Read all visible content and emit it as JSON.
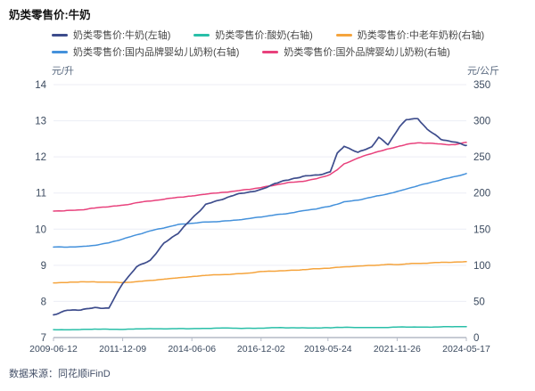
{
  "title": "奶类零售价:牛奶",
  "footer": {
    "source_label": "数据来源：同花顺iFinD"
  },
  "colors": {
    "background": "#ffffff",
    "grid": "#eceef5",
    "axis_line": "#b4bac6",
    "tick_text": "#3b4a5f",
    "unit_text": "#5a6a80",
    "legend_text": "#474747",
    "title_text": "#141414",
    "footer_text": "#445068"
  },
  "chart_data": {
    "type": "line",
    "title": "奶类零售价:牛奶",
    "grid": true,
    "legend_position": "top",
    "left_axis": {
      "unit": "元/升",
      "min": 7,
      "max": 14,
      "ticks": [
        14,
        13,
        12,
        11,
        10,
        9,
        8,
        7
      ]
    },
    "right_axis": {
      "unit": "元/公斤",
      "min": 0,
      "max": 350,
      "ticks": [
        350,
        300,
        250,
        200,
        150,
        100,
        50,
        0
      ]
    },
    "x_axis": {
      "start_date": "2009-06-12",
      "end_date": "2024-05-17",
      "tick_labels": [
        {
          "label": "2009-06-12",
          "m": 0
        },
        {
          "label": "2011-12-09",
          "m": 30
        },
        {
          "label": "2014-06-06",
          "m": 60
        },
        {
          "label": "2016-12-02",
          "m": 90
        },
        {
          "label": "2019-05-24",
          "m": 119
        },
        {
          "label": "2021-11-26",
          "m": 149
        },
        {
          "label": "2024-05-17",
          "m": 179
        }
      ]
    },
    "x": [
      "2009-06",
      "2009-12",
      "2010-06",
      "2010-12",
      "2011-06",
      "2011-12",
      "2012-06",
      "2012-12",
      "2013-06",
      "2013-12",
      "2014-06",
      "2014-12",
      "2015-06",
      "2015-12",
      "2016-06",
      "2016-12",
      "2017-06",
      "2017-12",
      "2018-06",
      "2018-12",
      "2019-06",
      "2019-09",
      "2019-12",
      "2020-06",
      "2020-12",
      "2021-03",
      "2021-07",
      "2021-12",
      "2022-03",
      "2022-08",
      "2022-12",
      "2023-06",
      "2023-12",
      "2024-05"
    ],
    "series": [
      {
        "name": "奶类零售价:牛奶(左轴)",
        "axis": "left",
        "color": "#3d4c8c",
        "values": [
          7.62,
          7.76,
          7.79,
          7.82,
          7.8,
          8.5,
          8.97,
          9.15,
          9.6,
          9.88,
          10.3,
          10.7,
          10.8,
          10.92,
          11.02,
          11.1,
          11.28,
          11.35,
          11.45,
          11.5,
          11.6,
          12.1,
          12.3,
          12.1,
          12.28,
          12.55,
          12.35,
          12.85,
          13.02,
          13.05,
          12.75,
          12.5,
          12.42,
          12.32
        ]
      },
      {
        "name": "奶类零售价:酸奶(右轴)",
        "axis": "right",
        "color": "#29bfa8",
        "values": [
          11,
          11,
          11,
          11.5,
          11.5,
          11.5,
          12,
          12,
          12,
          12.5,
          12.5,
          12.5,
          13,
          13,
          13,
          13,
          13.5,
          13.5,
          13.5,
          13.5,
          13.5,
          14,
          14,
          14,
          14,
          14,
          14,
          14.5,
          14.5,
          14.5,
          14.5,
          15,
          15,
          15
        ]
      },
      {
        "name": "奶类零售价:中老年奶粉(右轴)",
        "axis": "right",
        "color": "#f5a43d",
        "values": [
          76,
          76,
          77,
          77,
          77,
          76,
          77,
          79,
          81,
          83,
          84,
          86,
          87,
          88,
          89,
          91,
          92,
          93,
          94,
          95,
          96,
          97,
          98,
          99,
          100,
          100,
          101,
          101,
          102,
          103,
          103,
          104,
          104,
          105
        ]
      },
      {
        "name": "奶类零售价:国内品牌婴幼儿奶粉(右轴)",
        "axis": "right",
        "color": "#4491db",
        "values": [
          125,
          125,
          126,
          128,
          131,
          136,
          142,
          148,
          152,
          156,
          158,
          160,
          161,
          162,
          164,
          167,
          170,
          172,
          175,
          178,
          182,
          185,
          188,
          190,
          194,
          196,
          199,
          203,
          206,
          210,
          213,
          218,
          223,
          227
        ]
      },
      {
        "name": "奶类零售价:国外品牌婴幼儿奶粉(右轴)",
        "axis": "right",
        "color": "#e8417c",
        "values": [
          175,
          176,
          177,
          179,
          181,
          183,
          187,
          189,
          191,
          194,
          196,
          199,
          200,
          202,
          205,
          208,
          211,
          214,
          216,
          220,
          226,
          232,
          240,
          248,
          255,
          258,
          261,
          265,
          267,
          269,
          269,
          268,
          267,
          270
        ]
      }
    ]
  }
}
